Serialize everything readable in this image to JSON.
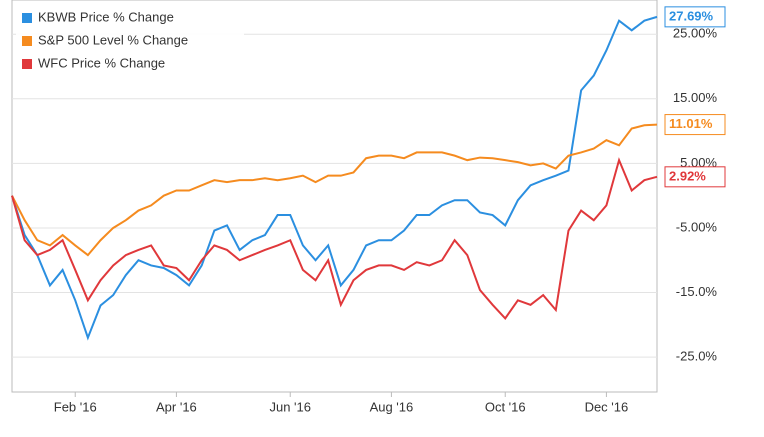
{
  "chart_data": {
    "type": "line",
    "categories": [
      null,
      null,
      null,
      null,
      null,
      "Feb '16",
      null,
      null,
      null,
      null,
      null,
      null,
      null,
      "Apr '16",
      null,
      null,
      null,
      null,
      null,
      null,
      null,
      null,
      "Jun '16",
      null,
      null,
      null,
      null,
      null,
      null,
      null,
      "Aug '16",
      null,
      null,
      null,
      null,
      null,
      null,
      null,
      null,
      "Oct '16",
      null,
      null,
      null,
      null,
      null,
      null,
      null,
      "Dec '16",
      null,
      null,
      null,
      null
    ],
    "series": [
      {
        "name": "KBWB Price % Change",
        "color": "#2b8fe0",
        "values": [
          0,
          -6.1,
          -9.2,
          -13.9,
          -11.5,
          -16.2,
          -22,
          -17,
          -15.4,
          -12.3,
          -10,
          -10.8,
          -11.2,
          -12.3,
          -13.9,
          -10.8,
          -5.4,
          -4.6,
          -8.4,
          -6.9,
          -6.1,
          -3,
          -3,
          -7.7,
          -10,
          -7.7,
          -13.9,
          -11.5,
          -7.7,
          -6.9,
          -6.9,
          -5.4,
          -3,
          -3,
          -1.5,
          -0.7,
          -0.7,
          -2.6,
          -3,
          -4.6,
          -0.7,
          1.6,
          2.4,
          3.1,
          3.9,
          16.3,
          18.6,
          22.5,
          27.1,
          25.6,
          27.1,
          27.69
        ],
        "value_labels": [
          null,
          null,
          null,
          null,
          null,
          null,
          null,
          null,
          null,
          null,
          null,
          null,
          null,
          null,
          null,
          null,
          null,
          null,
          null,
          null,
          null,
          null,
          null,
          null,
          null,
          null,
          null,
          null,
          null,
          null,
          null,
          null,
          null,
          null,
          null,
          null,
          null,
          null,
          null,
          null,
          null,
          null,
          null,
          null,
          null,
          null,
          null,
          null,
          null,
          null,
          null,
          "27.69%"
        ]
      },
      {
        "name": "S&P 500 Level % Change",
        "color": "#f58b1f",
        "values": [
          0,
          -3.8,
          -6.9,
          -7.7,
          -6.1,
          -7.7,
          -9.2,
          -6.9,
          -5,
          -3.8,
          -2.3,
          -1.5,
          0,
          0.8,
          0.8,
          1.6,
          2.4,
          2.1,
          2.4,
          2.4,
          2.7,
          2.4,
          2.7,
          3.1,
          2.1,
          3.1,
          3.1,
          3.6,
          5.8,
          6.2,
          6.2,
          5.8,
          6.7,
          6.7,
          6.7,
          6.2,
          5.5,
          5.9,
          5.8,
          5.5,
          5.2,
          4.7,
          5,
          4.2,
          6.2,
          6.7,
          7.3,
          8.6,
          7.8,
          10.4,
          10.9,
          11.01
        ],
        "value_labels": [
          null,
          null,
          null,
          null,
          null,
          null,
          null,
          null,
          null,
          null,
          null,
          null,
          null,
          null,
          null,
          null,
          null,
          null,
          null,
          null,
          null,
          null,
          null,
          null,
          null,
          null,
          null,
          null,
          null,
          null,
          null,
          null,
          null,
          null,
          null,
          null,
          null,
          null,
          null,
          null,
          null,
          null,
          null,
          null,
          null,
          null,
          null,
          null,
          null,
          null,
          null,
          "11.01%"
        ]
      },
      {
        "name": "WFC Price % Change",
        "color": "#e0383b",
        "values": [
          0,
          -6.9,
          -9.2,
          -8.4,
          -6.9,
          -11.5,
          -16.2,
          -13.1,
          -10.8,
          -9.2,
          -8.4,
          -7.7,
          -10.8,
          -11.2,
          -13.1,
          -10,
          -7.7,
          -8.4,
          -10,
          -9.2,
          -8.4,
          -7.7,
          -6.9,
          -11.5,
          -13.1,
          -10,
          -16.9,
          -13.1,
          -11.5,
          -10.8,
          -10.8,
          -11.5,
          -10.3,
          -10.8,
          -10,
          -6.9,
          -9.2,
          -14.6,
          -16.9,
          -19,
          -16.2,
          -16.9,
          -15.4,
          -17.7,
          -5.4,
          -2.3,
          -3.8,
          -1.5,
          5.5,
          0.8,
          2.4,
          2.92
        ],
        "value_labels": [
          null,
          null,
          null,
          null,
          null,
          null,
          null,
          null,
          null,
          null,
          null,
          null,
          null,
          null,
          null,
          null,
          null,
          null,
          null,
          null,
          null,
          null,
          null,
          null,
          null,
          null,
          null,
          null,
          null,
          null,
          null,
          null,
          null,
          null,
          null,
          null,
          null,
          null,
          null,
          null,
          null,
          null,
          null,
          null,
          null,
          null,
          null,
          null,
          null,
          null,
          null,
          "2.92%"
        ]
      }
    ],
    "ylim": [
      -30.4,
      30.3
    ],
    "yticks": [
      {
        "value": 25,
        "label": "25.00%"
      },
      {
        "value": 15,
        "label": "15.00%"
      },
      {
        "value": 5,
        "label": "5.00%"
      },
      {
        "value": -5,
        "label": "-5.00%"
      },
      {
        "value": -15,
        "label": "-15.0%"
      },
      {
        "value": -25,
        "label": "-25.0%"
      }
    ],
    "grid": true,
    "legend": "upper left"
  }
}
